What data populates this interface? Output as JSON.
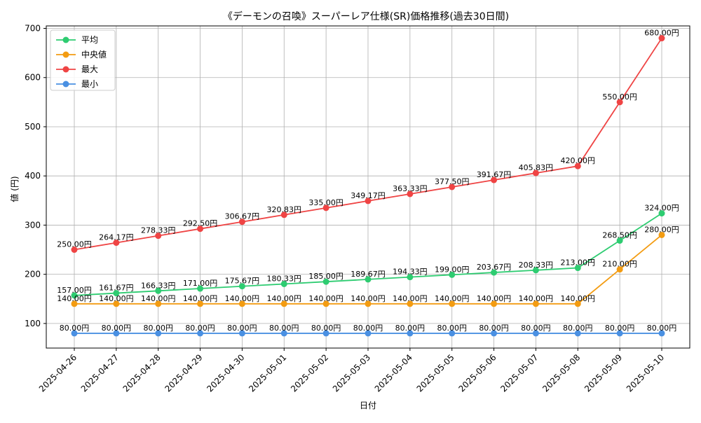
{
  "chart_data": {
    "type": "line",
    "title": "《デーモンの召喚》スーパーレア仕様(SR)価格推移(過去30日間)",
    "xlabel": "日付",
    "ylabel": "値 (円)",
    "categories": [
      "2025-04-26",
      "2025-04-27",
      "2025-04-28",
      "2025-04-29",
      "2025-04-30",
      "2025-05-01",
      "2025-05-02",
      "2025-05-03",
      "2025-05-04",
      "2025-05-05",
      "2025-05-06",
      "2025-05-07",
      "2025-05-08",
      "2025-05-09",
      "2025-05-10"
    ],
    "ylim": [
      50,
      705
    ],
    "yticks": [
      100,
      200,
      300,
      400,
      500,
      600,
      700
    ],
    "grid": true,
    "legend_position": "top-left",
    "value_suffix": "円",
    "series": [
      {
        "name": "平均",
        "color": "#2ecc71",
        "values": [
          157.0,
          161.67,
          166.33,
          171.0,
          175.67,
          180.33,
          185.0,
          189.67,
          194.33,
          199.0,
          203.67,
          208.33,
          213.0,
          268.5,
          324.0
        ]
      },
      {
        "name": "中央値",
        "color": "#f39c12",
        "values": [
          140.0,
          140.0,
          140.0,
          140.0,
          140.0,
          140.0,
          140.0,
          140.0,
          140.0,
          140.0,
          140.0,
          140.0,
          140.0,
          210.0,
          280.0
        ]
      },
      {
        "name": "最大",
        "color": "#ef4444",
        "values": [
          250.0,
          264.17,
          278.33,
          292.5,
          306.67,
          320.83,
          335.0,
          349.17,
          363.33,
          377.5,
          391.67,
          405.83,
          420.0,
          550.0,
          680.0
        ]
      },
      {
        "name": "最小",
        "color": "#4a90e2",
        "values": [
          80.0,
          80.0,
          80.0,
          80.0,
          80.0,
          80.0,
          80.0,
          80.0,
          80.0,
          80.0,
          80.0,
          80.0,
          80.0,
          80.0,
          80.0
        ]
      }
    ]
  }
}
